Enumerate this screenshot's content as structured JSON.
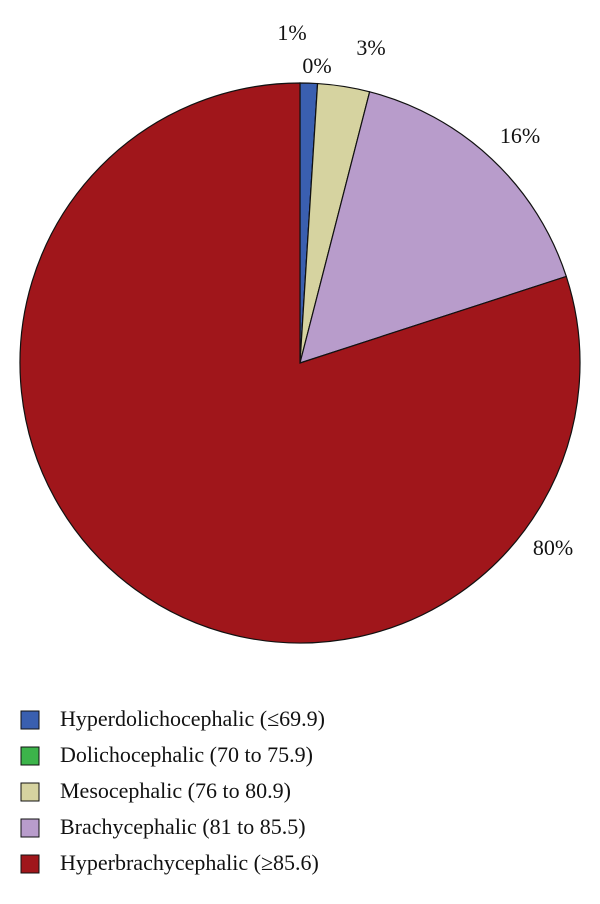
{
  "chart_data": {
    "type": "pie",
    "categories": [
      "Hyperdolichocephalic (≤69.9)",
      "Dolichocephalic (70 to 75.9)",
      "Mesocephalic (76 to 80.9)",
      "Brachycephalic (81 to 85.5)",
      "Hyperbrachycephalic (≥85.6)"
    ],
    "values": [
      1,
      0,
      3,
      16,
      80
    ],
    "value_labels": [
      "1%",
      "0%",
      "3%",
      "16%",
      "80%"
    ],
    "colors": [
      "#3a5fb0",
      "#3cb44a",
      "#d6d3a0",
      "#b89ccb",
      "#a0161b"
    ],
    "legend": "bottom-left"
  }
}
